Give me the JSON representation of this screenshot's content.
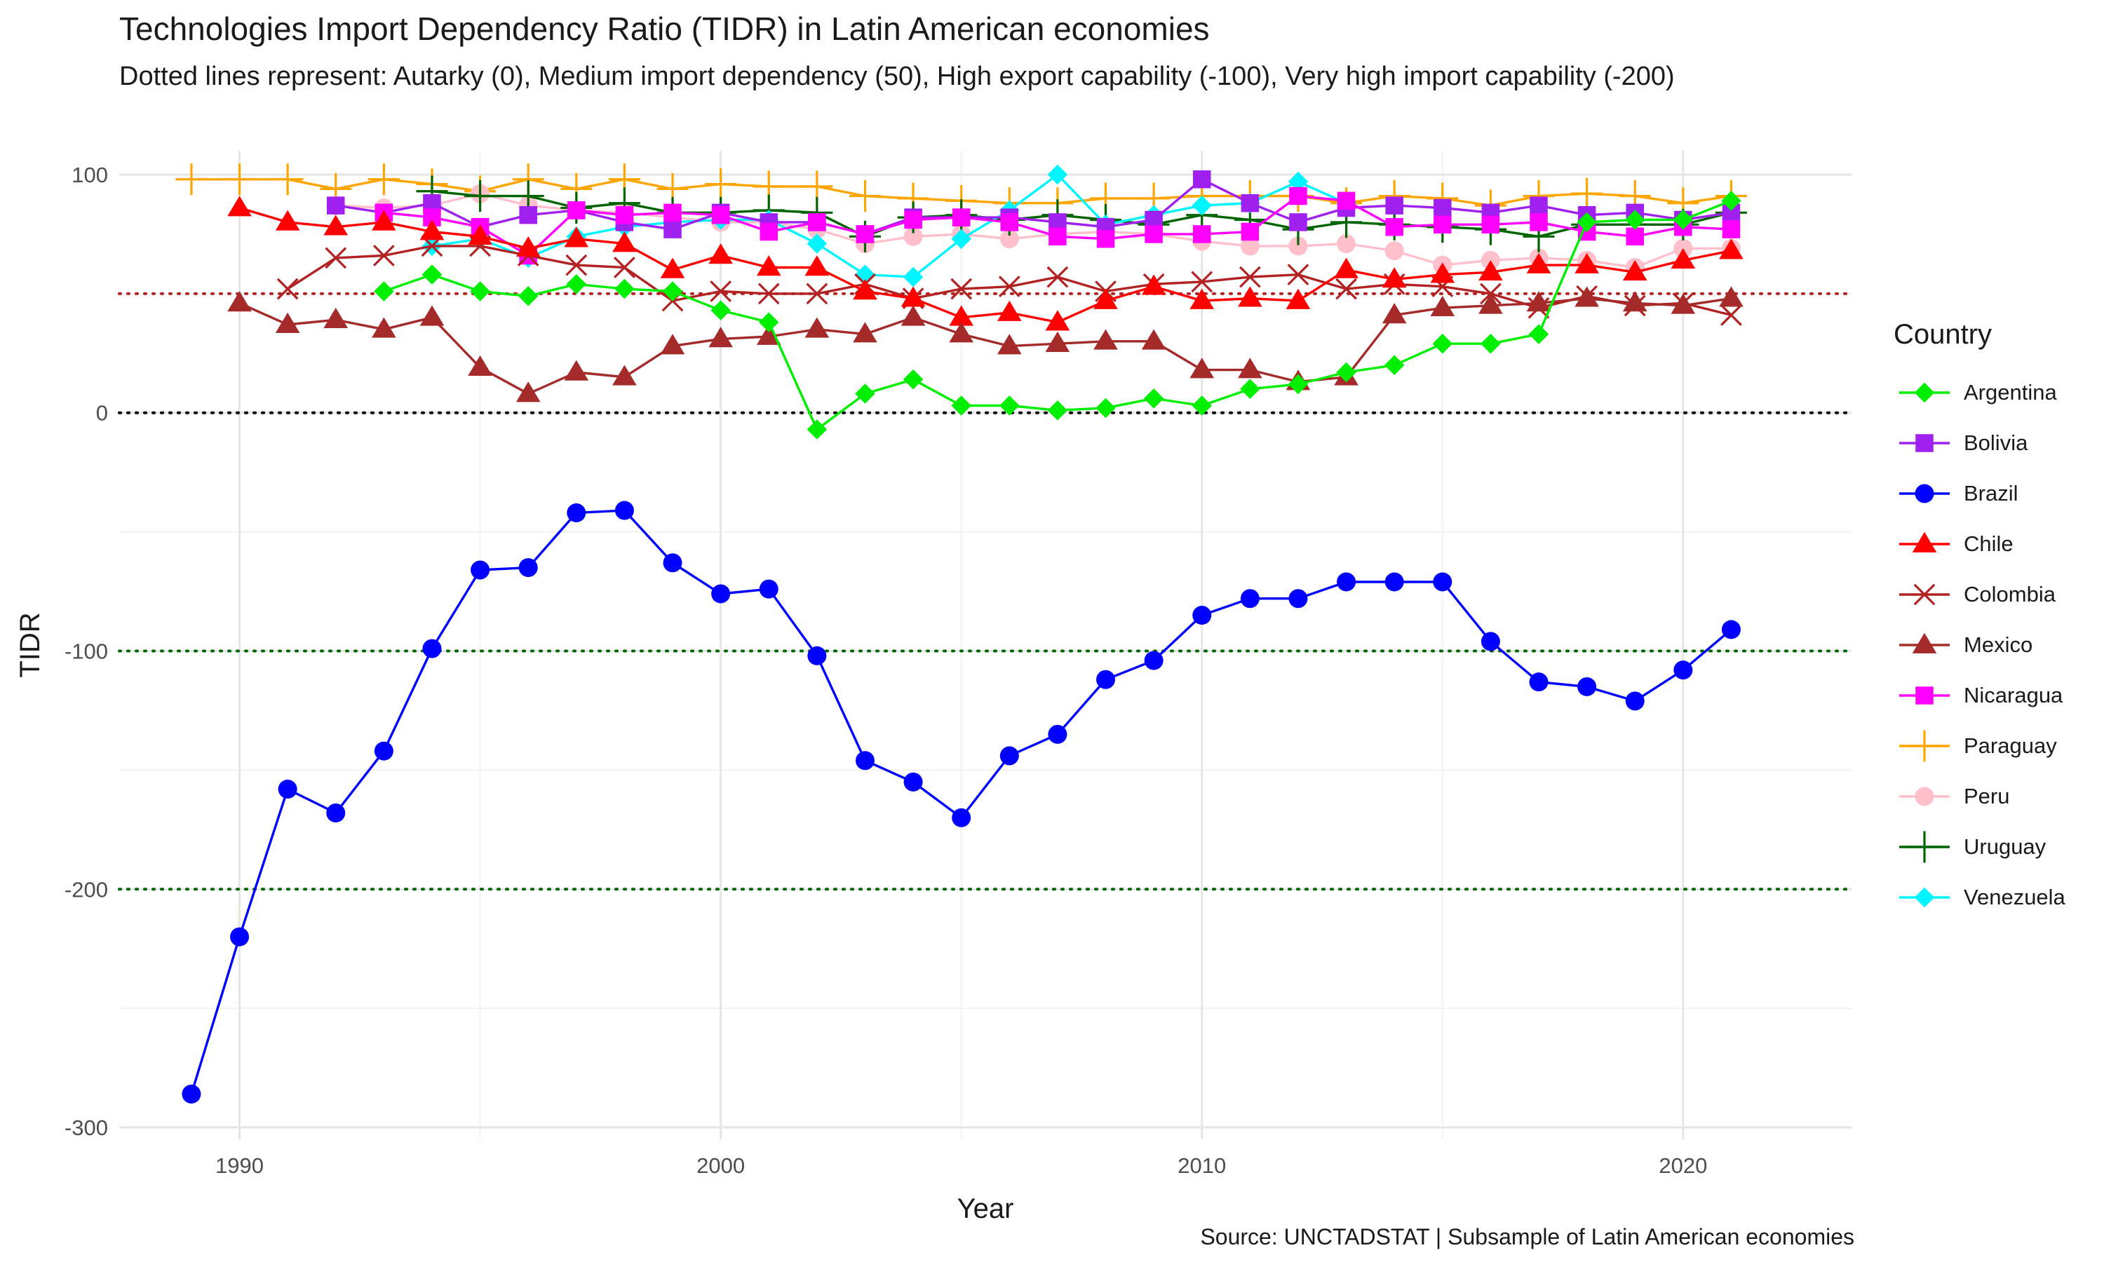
{
  "chart_data": {
    "type": "line",
    "title": "Technologies Import Dependency Ratio (TIDR) in Latin American economies",
    "subtitle": "Dotted lines represent: Autarky (0), Medium import dependency (50), High export capability (-100), Very high import capability (-200)",
    "caption": "Source: UNCTADSTAT | Subsample of Latin American economies",
    "xlabel": "Year",
    "ylabel": "TIDR",
    "xlim": [
      1987.5,
      2023.5
    ],
    "ylim": [
      -305,
      110
    ],
    "x_ticks": [
      1990,
      2000,
      2010,
      2020
    ],
    "y_ticks": [
      100,
      0,
      -100,
      -200,
      -300
    ],
    "x_tick_labels": [
      "1990",
      "2000",
      "2010",
      "2020"
    ],
    "y_tick_labels": [
      "100",
      "0",
      "-100",
      "-200",
      "-300"
    ],
    "grid": true,
    "legend_position": "right",
    "legend_title": "Country",
    "reference_lines": [
      {
        "y": 50,
        "color": "#b22222"
      },
      {
        "y": 0,
        "color": "#000000"
      },
      {
        "y": -100,
        "color": "#006400"
      },
      {
        "y": -200,
        "color": "#006400"
      }
    ],
    "series": [
      {
        "name": "Argentina",
        "color": "#00ee00",
        "marker": "diamond",
        "z": 10,
        "x": [
          1993,
          1994,
          1995,
          1996,
          1997,
          1998,
          1999,
          2000,
          2001,
          2002,
          2003,
          2004,
          2005,
          2006,
          2007,
          2008,
          2009,
          2010,
          2011,
          2012,
          2013,
          2014,
          2015,
          2016,
          2017,
          2018,
          2019,
          2020,
          2021
        ],
        "y": [
          51,
          58,
          51,
          49,
          54,
          52,
          51,
          43,
          38,
          -7,
          8,
          14,
          3,
          3,
          1,
          2,
          6,
          3,
          10,
          12,
          17,
          20,
          29,
          29,
          33,
          80,
          81,
          81,
          89
        ]
      },
      {
        "name": "Bolivia",
        "color": "#a020f0",
        "marker": "square",
        "z": 5,
        "x": [
          1992,
          1993,
          1994,
          1995,
          1996,
          1997,
          1998,
          1999,
          2000,
          2001,
          2002,
          2003,
          2004,
          2005,
          2006,
          2007,
          2008,
          2009,
          2010,
          2011,
          2012,
          2013,
          2014,
          2015,
          2016,
          2017,
          2018,
          2019,
          2020,
          2021
        ],
        "y": [
          87,
          84,
          88,
          78,
          83,
          85,
          80,
          77,
          84,
          80,
          80,
          75,
          82,
          82,
          82,
          80,
          78,
          81,
          98,
          88,
          80,
          86,
          87,
          86,
          84,
          87,
          83,
          84,
          81,
          84
        ]
      },
      {
        "name": "Brazil",
        "color": "#0000ff",
        "marker": "circle",
        "z": 11,
        "x": [
          1989,
          1990,
          1991,
          1992,
          1993,
          1994,
          1995,
          1996,
          1997,
          1998,
          1999,
          2000,
          2001,
          2002,
          2003,
          2004,
          2005,
          2006,
          2007,
          2008,
          2009,
          2010,
          2011,
          2012,
          2013,
          2014,
          2015,
          2016,
          2017,
          2018,
          2019,
          2020,
          2021
        ],
        "y": [
          -286,
          -220,
          -158,
          -168,
          -142,
          -99,
          -66,
          -65,
          -42,
          -41,
          -63,
          -76,
          -74,
          -102,
          -146,
          -155,
          -170,
          -144,
          -135,
          -112,
          -104,
          -85,
          -78,
          -78,
          -71,
          -71,
          -71,
          -96,
          -113,
          -115,
          -121,
          -108,
          -91
        ]
      },
      {
        "name": "Chile",
        "color": "#ff0000",
        "marker": "triangle",
        "z": 8,
        "x": [
          1990,
          1991,
          1992,
          1993,
          1994,
          1995,
          1996,
          1997,
          1998,
          1999,
          2000,
          2001,
          2002,
          2003,
          2004,
          2005,
          2006,
          2007,
          2008,
          2009,
          2010,
          2011,
          2012,
          2013,
          2014,
          2015,
          2016,
          2017,
          2018,
          2019,
          2020,
          2021
        ],
        "y": [
          86,
          80,
          78,
          80,
          76,
          74,
          69,
          73,
          71,
          60,
          66,
          61,
          61,
          51,
          48,
          40,
          42,
          38,
          47,
          53,
          47,
          48,
          47,
          60,
          56,
          58,
          59,
          62,
          62,
          59,
          64,
          68
        ]
      },
      {
        "name": "Colombia",
        "color": "#b22222",
        "marker": "x",
        "z": 7,
        "x": [
          1991,
          1992,
          1993,
          1994,
          1995,
          1996,
          1997,
          1998,
          1999,
          2000,
          2001,
          2002,
          2003,
          2004,
          2005,
          2006,
          2007,
          2008,
          2009,
          2010,
          2011,
          2012,
          2013,
          2014,
          2015,
          2016,
          2017,
          2018,
          2019,
          2020,
          2021
        ],
        "y": [
          52,
          65,
          66,
          70,
          70,
          66,
          62,
          61,
          47,
          51,
          50,
          50,
          54,
          48,
          52,
          53,
          57,
          51,
          54,
          55,
          57,
          58,
          52,
          54,
          53,
          50,
          44,
          49,
          45,
          46,
          41
        ]
      },
      {
        "name": "Mexico",
        "color": "#a52a2a",
        "marker": "triangle",
        "z": 9,
        "x": [
          1990,
          1991,
          1992,
          1993,
          1994,
          1995,
          1996,
          1997,
          1998,
          1999,
          2000,
          2001,
          2002,
          2003,
          2004,
          2005,
          2006,
          2007,
          2008,
          2009,
          2010,
          2011,
          2012,
          2013,
          2014,
          2015,
          2016,
          2017,
          2018,
          2019,
          2020,
          2021
        ],
        "y": [
          46,
          37,
          39,
          35,
          40,
          19,
          8,
          17,
          15,
          28,
          31,
          32,
          35,
          33,
          40,
          33,
          28,
          29,
          30,
          30,
          18,
          18,
          13,
          15,
          41,
          44,
          45,
          46,
          48,
          46,
          45,
          48
        ]
      },
      {
        "name": "Nicaragua",
        "color": "#ff00ff",
        "marker": "square",
        "z": 6,
        "x": [
          1993,
          1994,
          1995,
          1996,
          1997,
          1998,
          1999,
          2000,
          2001,
          2002,
          2003,
          2004,
          2005,
          2006,
          2007,
          2008,
          2009,
          2010,
          2011,
          2012,
          2013,
          2014,
          2015,
          2016,
          2017,
          2018,
          2019,
          2020,
          2021
        ],
        "y": [
          84,
          82,
          78,
          66,
          85,
          83,
          84,
          83,
          76,
          80,
          75,
          81,
          82,
          80,
          74,
          73,
          75,
          75,
          76,
          91,
          89,
          78,
          79,
          79,
          80,
          76,
          74,
          78,
          77
        ]
      },
      {
        "name": "Paraguay",
        "color": "#ffa500",
        "marker": "plus",
        "z": 1,
        "x": [
          1989,
          1990,
          1991,
          1992,
          1993,
          1994,
          1995,
          1996,
          1997,
          1998,
          1999,
          2000,
          2001,
          2002,
          2003,
          2004,
          2005,
          2006,
          2007,
          2008,
          2009,
          2010,
          2011,
          2012,
          2013,
          2014,
          2015,
          2016,
          2017,
          2018,
          2019,
          2020,
          2021
        ],
        "y": [
          98,
          98,
          98,
          94,
          98,
          96,
          93,
          98,
          94,
          98,
          94,
          96,
          95,
          95,
          91,
          90,
          89,
          88,
          88,
          90,
          90,
          91,
          91,
          91,
          88,
          91,
          90,
          87,
          91,
          92,
          91,
          88,
          91
        ]
      },
      {
        "name": "Peru",
        "color": "#ffc0cb",
        "marker": "circle",
        "z": 2,
        "x": [
          1992,
          1993,
          1994,
          1995,
          1996,
          1997,
          1998,
          1999,
          2000,
          2001,
          2002,
          2003,
          2004,
          2005,
          2006,
          2007,
          2008,
          2009,
          2010,
          2011,
          2012,
          2013,
          2014,
          2015,
          2016,
          2017,
          2018,
          2019,
          2020,
          2021
        ],
        "y": [
          87,
          86,
          87,
          92,
          87,
          85,
          84,
          82,
          80,
          80,
          77,
          71,
          74,
          75,
          73,
          75,
          76,
          75,
          72,
          70,
          70,
          71,
          68,
          62,
          64,
          65,
          64,
          61,
          69,
          69
        ]
      },
      {
        "name": "Uruguay",
        "color": "#006400",
        "marker": "plus",
        "z": 3,
        "x": [
          1994,
          1995,
          1996,
          1997,
          1998,
          1999,
          2000,
          2001,
          2002,
          2003,
          2004,
          2005,
          2006,
          2007,
          2008,
          2009,
          2010,
          2011,
          2012,
          2013,
          2014,
          2015,
          2016,
          2017,
          2018,
          2019,
          2020,
          2021
        ],
        "y": [
          93,
          91,
          91,
          86,
          88,
          84,
          84,
          85,
          84,
          74,
          82,
          83,
          81,
          83,
          81,
          79,
          83,
          81,
          77,
          80,
          79,
          78,
          77,
          74,
          79,
          79,
          79,
          84
        ]
      },
      {
        "name": "Venezuela",
        "color": "#00f5ff",
        "marker": "diamond",
        "z": 4,
        "x": [
          1994,
          1995,
          1996,
          1997,
          1998,
          1999,
          2000,
          2001,
          2002,
          2003,
          2004,
          2005,
          2006,
          2007,
          2008,
          2009,
          2010,
          2011,
          2012,
          2013
        ],
        "y": [
          70,
          73,
          65,
          74,
          78,
          80,
          81,
          81,
          71,
          58,
          57,
          73,
          85,
          100,
          79,
          83,
          87,
          88,
          97,
          88
        ]
      }
    ]
  }
}
